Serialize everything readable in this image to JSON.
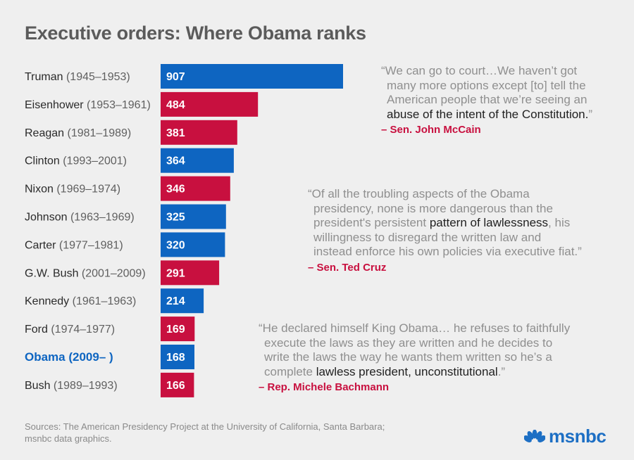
{
  "title": "Executive orders: Where Obama ranks",
  "colors": {
    "blue": "#0e65c1",
    "red": "#c8103f",
    "name_text": "#2a2a2a",
    "years_text": "#5f5f5f",
    "highlight_text": "#0e65c1",
    "background": "#efefef"
  },
  "chart_data": {
    "type": "bar",
    "orientation": "horizontal",
    "title": "Executive orders: Where Obama ranks",
    "xlabel": "",
    "ylabel": "",
    "xlim": [
      0,
      907
    ],
    "bars": [
      {
        "name": "Truman",
        "years": "(1945–1953)",
        "value": 907,
        "party": "blue",
        "highlight": false
      },
      {
        "name": "Eisenhower",
        "years": "(1953–1961)",
        "value": 484,
        "party": "red",
        "highlight": false
      },
      {
        "name": "Reagan",
        "years": "(1981–1989)",
        "value": 381,
        "party": "red",
        "highlight": false
      },
      {
        "name": "Clinton",
        "years": "(1993–2001)",
        "value": 364,
        "party": "blue",
        "highlight": false
      },
      {
        "name": "Nixon",
        "years": "(1969–1974)",
        "value": 346,
        "party": "red",
        "highlight": false
      },
      {
        "name": "Johnson",
        "years": "(1963–1969)",
        "value": 325,
        "party": "blue",
        "highlight": false
      },
      {
        "name": "Carter",
        "years": "(1977–1981)",
        "value": 320,
        "party": "blue",
        "highlight": false
      },
      {
        "name": "G.W. Bush",
        "years": "(2001–2009)",
        "value": 291,
        "party": "red",
        "highlight": false
      },
      {
        "name": "Kennedy",
        "years": "(1961–1963)",
        "value": 214,
        "party": "blue",
        "highlight": false
      },
      {
        "name": "Ford",
        "years": "(1974–1977)",
        "value": 169,
        "party": "red",
        "highlight": false
      },
      {
        "name": "Obama",
        "years": "(2009– )",
        "value": 168,
        "party": "blue",
        "highlight": true
      },
      {
        "name": "Bush",
        "years": "(1989–1993)",
        "value": 166,
        "party": "red",
        "highlight": false
      }
    ]
  },
  "quotes": [
    {
      "lines": [
        {
          "parts": [
            {
              "text": "“We can go to court…We haven’t got",
              "hl": false
            }
          ]
        },
        {
          "parts": [
            {
              "text": "many more options except [to] tell the",
              "hl": false
            }
          ]
        },
        {
          "parts": [
            {
              "text": "American people that we’re seeing an",
              "hl": false
            }
          ]
        },
        {
          "parts": [
            {
              "text": "abuse of the intent of the Constitution.",
              "hl": true
            },
            {
              "text": "”",
              "hl": false
            }
          ]
        }
      ],
      "attribution": "– Sen. John McCain"
    },
    {
      "lines": [
        {
          "parts": [
            {
              "text": "“Of all the troubling aspects of the Obama",
              "hl": false
            }
          ]
        },
        {
          "parts": [
            {
              "text": "presidency, none is more dangerous than the",
              "hl": false
            }
          ]
        },
        {
          "parts": [
            {
              "text": "president's persistent ",
              "hl": false
            },
            {
              "text": "pattern of lawlessness",
              "hl": true
            },
            {
              "text": ", his",
              "hl": false
            }
          ]
        },
        {
          "parts": [
            {
              "text": "willingness to disregard the written law and",
              "hl": false
            }
          ]
        },
        {
          "parts": [
            {
              "text": "instead enforce his own policies via executive fiat.”",
              "hl": false
            }
          ]
        }
      ],
      "attribution": "– Sen. Ted Cruz"
    },
    {
      "lines": [
        {
          "parts": [
            {
              "text": "“He declared himself King Obama… he refuses to faithfully",
              "hl": false
            }
          ]
        },
        {
          "parts": [
            {
              "text": "execute the laws as they are written and he decides to",
              "hl": false
            }
          ]
        },
        {
          "parts": [
            {
              "text": "write the laws the way he wants them written so he’s a",
              "hl": false
            }
          ]
        },
        {
          "parts": [
            {
              "text": "complete ",
              "hl": false
            },
            {
              "text": "lawless president, unconstitutional",
              "hl": true
            },
            {
              "text": ".”",
              "hl": false
            }
          ]
        }
      ],
      "attribution": "– Rep. Michele Bachmann"
    }
  ],
  "sources": {
    "line1": "Sources: The American Presidency Project at the University of California, Santa Barbara;",
    "line2": "msnbc data graphics."
  },
  "logo": {
    "wordmark": "msnbc",
    "icon": "peacock-icon"
  }
}
